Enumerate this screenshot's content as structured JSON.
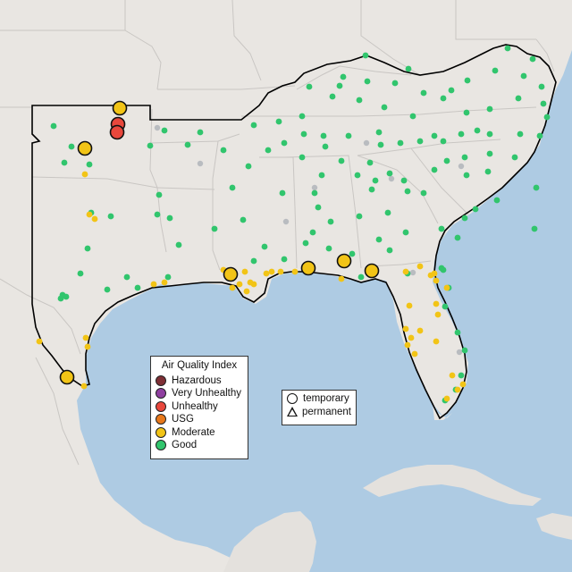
{
  "legend": {
    "title": "Air Quality Index",
    "categories": [
      {
        "label": "Hazardous",
        "color": "#7e2f35"
      },
      {
        "label": "Very Unhealthy",
        "color": "#8f3fa0"
      },
      {
        "label": "Unhealthy",
        "color": "#e8473c"
      },
      {
        "label": "USG",
        "color": "#e8781a"
      },
      {
        "label": "Moderate",
        "color": "#f2c416"
      },
      {
        "label": "Good",
        "color": "#31c56d"
      }
    ]
  },
  "monitor_types": [
    {
      "label": "temporary",
      "icon": "circle-icon"
    },
    {
      "label": "permanent",
      "icon": "triangle-icon"
    }
  ],
  "colors": {
    "water": "#aecbe3",
    "land": "#e9e6e2",
    "foreign_land": "#e4e1dd",
    "boundary": "#c9c6c3",
    "region_outline": "#000000",
    "inactive_site": "#b9bcc0"
  }
}
